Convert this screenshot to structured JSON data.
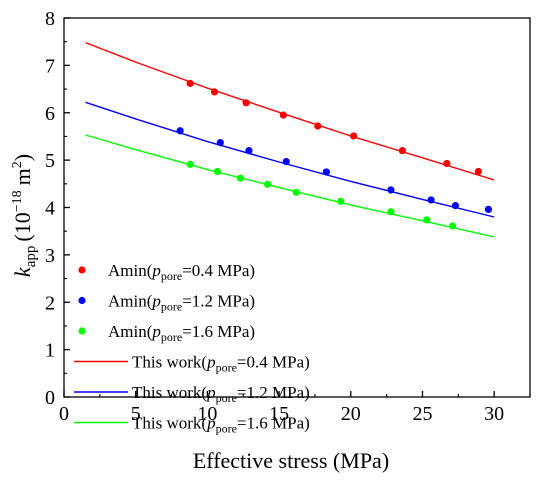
{
  "chart_data": {
    "type": "scatter",
    "xlabel": "Effective stress (MPa)",
    "ylabel": {
      "k": "k",
      "sub": "app",
      "unit_pre": "(10",
      "exp": "−18",
      "unit_mid": "m",
      "sq": "2",
      "unit_post": ")"
    },
    "xlim": [
      0,
      32.5
    ],
    "ylim": [
      0,
      8
    ],
    "xticks": [
      "0",
      "5",
      "10",
      "15",
      "20",
      "25",
      "30"
    ],
    "yticks": [
      "0",
      "1",
      "2",
      "3",
      "4",
      "5",
      "6",
      "7",
      "8"
    ],
    "grid": false,
    "legend_position": "bottom-left, inside",
    "series": [
      {
        "kind": "points",
        "color": "#ff0000",
        "label_pre": "Amin(",
        "label_sub": "pore",
        "label_post": "=0.4 MPa)",
        "x": [
          8.8,
          10.5,
          12.7,
          15.3,
          17.7,
          20.2,
          23.6,
          26.7,
          28.9
        ],
        "y": [
          6.62,
          6.44,
          6.21,
          5.95,
          5.72,
          5.51,
          5.2,
          4.93,
          4.76
        ]
      },
      {
        "kind": "points",
        "color": "#0000ff",
        "label_pre": "Amin(",
        "label_sub": "pore",
        "label_post": "=1.2 MPa)",
        "x": [
          8.1,
          10.9,
          12.9,
          15.5,
          18.3,
          22.8,
          25.6,
          27.3,
          29.6
        ],
        "y": [
          5.62,
          5.37,
          5.2,
          4.97,
          4.75,
          4.37,
          4.16,
          4.04,
          3.96
        ]
      },
      {
        "kind": "points",
        "color": "#00ff00",
        "label_pre": "Amin(",
        "label_sub": "pore",
        "label_post": "=1.6 MPa)",
        "x": [
          8.8,
          10.7,
          12.3,
          14.2,
          16.2,
          19.3,
          22.8,
          25.3,
          27.1
        ],
        "y": [
          4.91,
          4.76,
          4.62,
          4.49,
          4.32,
          4.13,
          3.91,
          3.74,
          3.61
        ]
      },
      {
        "kind": "line",
        "color": "#ff0000",
        "label_pre": "This work(",
        "label_sub": "pore",
        "label_post": "=0.4 MPa)",
        "x": [
          1.5,
          5,
          10,
          15,
          20,
          25,
          30
        ],
        "y": [
          7.48,
          7.07,
          6.52,
          6.01,
          5.51,
          5.05,
          4.58
        ]
      },
      {
        "kind": "line",
        "color": "#0000ff",
        "label_pre": "This work(",
        "label_sub": "pore",
        "label_post": "=1.2 MPa)",
        "x": [
          1.5,
          5,
          10,
          15,
          20,
          25,
          30
        ],
        "y": [
          6.22,
          5.87,
          5.39,
          4.96,
          4.55,
          4.17,
          3.8
        ]
      },
      {
        "kind": "line",
        "color": "#00ff00",
        "label_pre": "This work(",
        "label_sub": "pore",
        "label_post": "=1.6 MPa)",
        "x": [
          1.5,
          5,
          10,
          15,
          20,
          25,
          30
        ],
        "y": [
          5.53,
          5.22,
          4.8,
          4.42,
          4.05,
          3.72,
          3.38
        ]
      }
    ]
  }
}
